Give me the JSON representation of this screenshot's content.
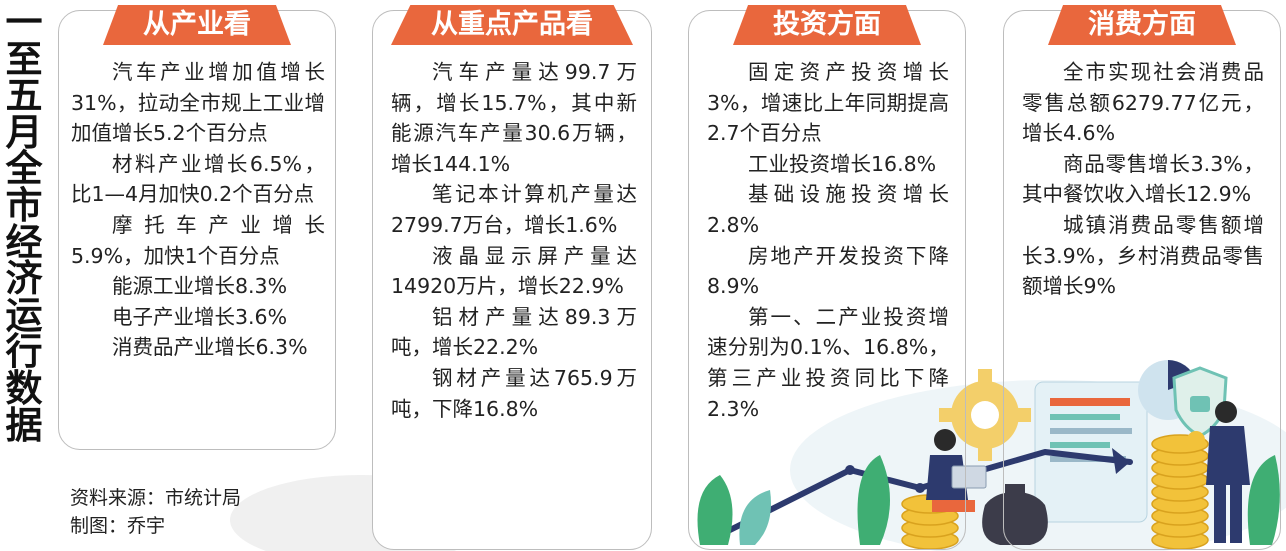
{
  "title": "一至五月全市经济运行数据",
  "panels": [
    {
      "heading": "从产业看",
      "paragraphs": [
        "汽车产业增加值增长31%，拉动全市规上工业增加值增长5.2个百分点",
        "材料产业增长6.5%，比1—4月加快0.2个百分点",
        "摩托车产业增长5.9%，加快1个百分点",
        "能源工业增长8.3%",
        "电子产业增长3.6%",
        "消费品产业增长6.3%"
      ]
    },
    {
      "heading": "从重点产品看",
      "paragraphs": [
        "汽车产量达99.7万辆，增长15.7%，其中新能源汽车产量30.6万辆，增长144.1%",
        "笔记本计算机产量达2799.7万台，增长1.6%",
        "液晶显示屏产量达14920万片，增长22.9%",
        "铝材产量达89.3万吨，增长22.2%",
        "钢材产量达765.9万吨，下降16.8%"
      ]
    },
    {
      "heading": "投资方面",
      "paragraphs": [
        "固定资产投资增长3%，增速比上年同期提高2.7个百分点",
        "工业投资增长16.8%",
        "基础设施投资增长2.8%",
        "房地产开发投资下降8.9%",
        "第一、二产业投资增速分别为0.1%、16.8%，第三产业投资同比下降2.3%"
      ]
    },
    {
      "heading": "消费方面",
      "paragraphs": [
        "全市实现社会消费品零售总额6279.77亿元，增长4.6%",
        "商品零售增长3.3%，其中餐饮收入增长12.9%",
        "城镇消费品零售额增长3.9%，乡村消费品零售额增长9%"
      ]
    }
  ],
  "credits": {
    "source": "资料来源：市统计局",
    "designer": "制图：乔宇"
  },
  "illustration": {
    "icons": [
      "gear-icon",
      "shield-lock-icon",
      "pie-chart-icon",
      "document-icon",
      "coin-stack-icon",
      "money-bag-icon",
      "growth-arrow-icon",
      "leaf-icon",
      "person-with-laptop-icon",
      "businessman-icon"
    ],
    "colors": {
      "accent": "#e9673d",
      "teal": "#6fc2b4",
      "navy": "#2d3a6e",
      "gold": "#f2c23a",
      "leaf": "#3fae73"
    }
  }
}
